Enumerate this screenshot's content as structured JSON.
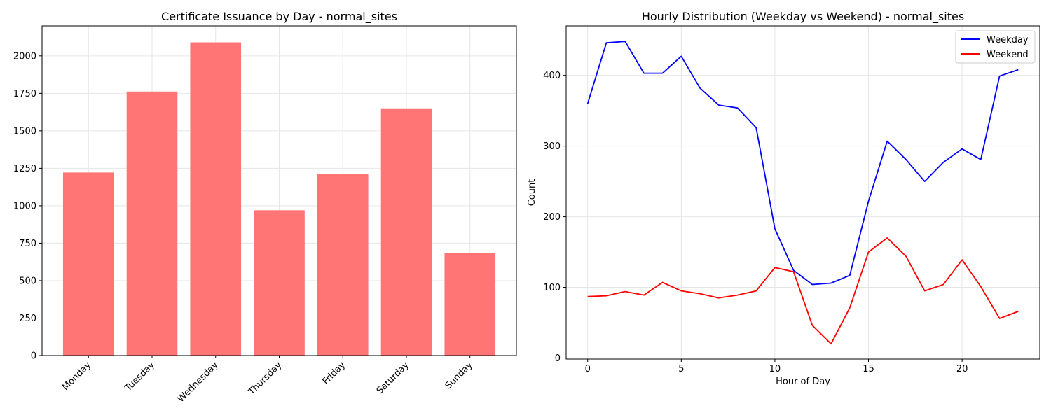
{
  "colors": {
    "bar": "#ff7474",
    "weekday": "#0000ff",
    "weekend": "#ff0000",
    "grid": "#e6e6e6",
    "axis": "#000000"
  },
  "chart_data": [
    {
      "type": "bar",
      "title": "Certificate Issuance by Day - normal_sites",
      "xlabel": "",
      "ylabel": "",
      "categories": [
        "Monday",
        "Tuesday",
        "Wednesday",
        "Thursday",
        "Friday",
        "Saturday",
        "Sunday"
      ],
      "values": [
        1222,
        1762,
        2090,
        970,
        1213,
        1650,
        683
      ],
      "ylim": [
        0,
        2200
      ],
      "yticks": [
        0,
        250,
        500,
        750,
        1000,
        1250,
        1500,
        1750,
        2000
      ],
      "grid": true
    },
    {
      "type": "line",
      "title": "Hourly Distribution (Weekday vs Weekend) - normal_sites",
      "xlabel": "Hour of Day",
      "ylabel": "Count",
      "x": [
        0,
        1,
        2,
        3,
        4,
        5,
        6,
        7,
        8,
        9,
        10,
        11,
        12,
        13,
        14,
        15,
        16,
        17,
        18,
        19,
        20,
        21,
        22,
        23
      ],
      "series": [
        {
          "name": "Weekday",
          "values": [
            360,
            446,
            448,
            403,
            403,
            427,
            382,
            358,
            354,
            326,
            183,
            124,
            104,
            106,
            117,
            222,
            307,
            281,
            250,
            277,
            296,
            281,
            399,
            408
          ]
        },
        {
          "name": "Weekend",
          "values": [
            87,
            88,
            94,
            89,
            107,
            95,
            91,
            85,
            89,
            95,
            128,
            122,
            46,
            20,
            71,
            150,
            170,
            144,
            95,
            104,
            139,
            101,
            56,
            66
          ]
        }
      ],
      "xlim": [
        -1.15,
        24.15
      ],
      "ylim": [
        -1.5,
        470
      ],
      "xticks": [
        0,
        5,
        10,
        15,
        20
      ],
      "yticks": [
        0,
        100,
        200,
        300,
        400
      ],
      "grid": true,
      "legend": "upper right"
    }
  ]
}
